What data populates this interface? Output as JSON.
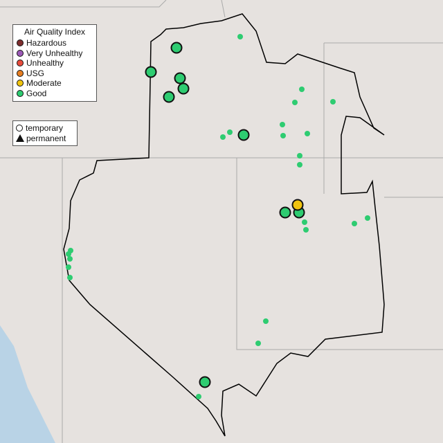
{
  "legend": {
    "title": "Air Quality Index",
    "categories": [
      {
        "label": "Hazardous",
        "color": "#7e2e2e"
      },
      {
        "label": "Very Unhealthy",
        "color": "#9b59b6"
      },
      {
        "label": "Unhealthy",
        "color": "#e74c3c"
      },
      {
        "label": "USG",
        "color": "#e67e22"
      },
      {
        "label": "Moderate",
        "color": "#f1c40f"
      },
      {
        "label": "Good",
        "color": "#2ecc71"
      }
    ],
    "shapes": [
      {
        "label": "temporary",
        "icon": "circle-icon"
      },
      {
        "label": "permanent",
        "icon": "triangle-icon"
      }
    ]
  },
  "colors": {
    "land": "#e6e2df",
    "water": "#b9d3e6",
    "boundary": "#000000",
    "state_lines": "#aaaaaa"
  }
}
